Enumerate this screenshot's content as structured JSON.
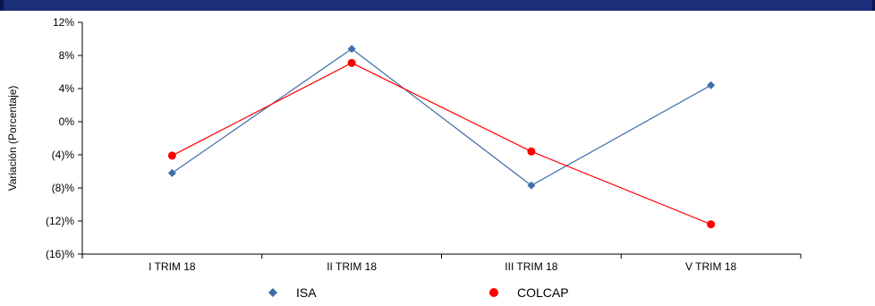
{
  "chart_data": {
    "type": "line",
    "categories": [
      "I TRIM 18",
      "II TRIM 18",
      "III TRIM 18",
      "V TRIM 18"
    ],
    "series": [
      {
        "name": "ISA",
        "values": [
          -6.2,
          8.8,
          -7.7,
          4.4
        ],
        "color": "#3f6ea8",
        "marker": "diamond"
      },
      {
        "name": "COLCAP",
        "values": [
          -4.1,
          7.1,
          -3.6,
          -12.4
        ],
        "color": "#ff0000",
        "marker": "circle"
      }
    ],
    "ylabel": "Variación (Porcentaje)",
    "ylim": [
      -16,
      12
    ],
    "yticks": [
      {
        "value": 12,
        "label": "12%"
      },
      {
        "value": 8,
        "label": "8%"
      },
      {
        "value": 4,
        "label": "4%"
      },
      {
        "value": 0,
        "label": "0%"
      },
      {
        "value": -4,
        "label": "(4)%"
      },
      {
        "value": -8,
        "label": "(8)%"
      },
      {
        "value": -12,
        "label": "(12)%"
      },
      {
        "value": -16,
        "label": "(16)%"
      }
    ],
    "grid": false,
    "legend_position": "bottom"
  },
  "colors": {
    "header_bar": "#1c2d7a",
    "axis": "#000000"
  }
}
